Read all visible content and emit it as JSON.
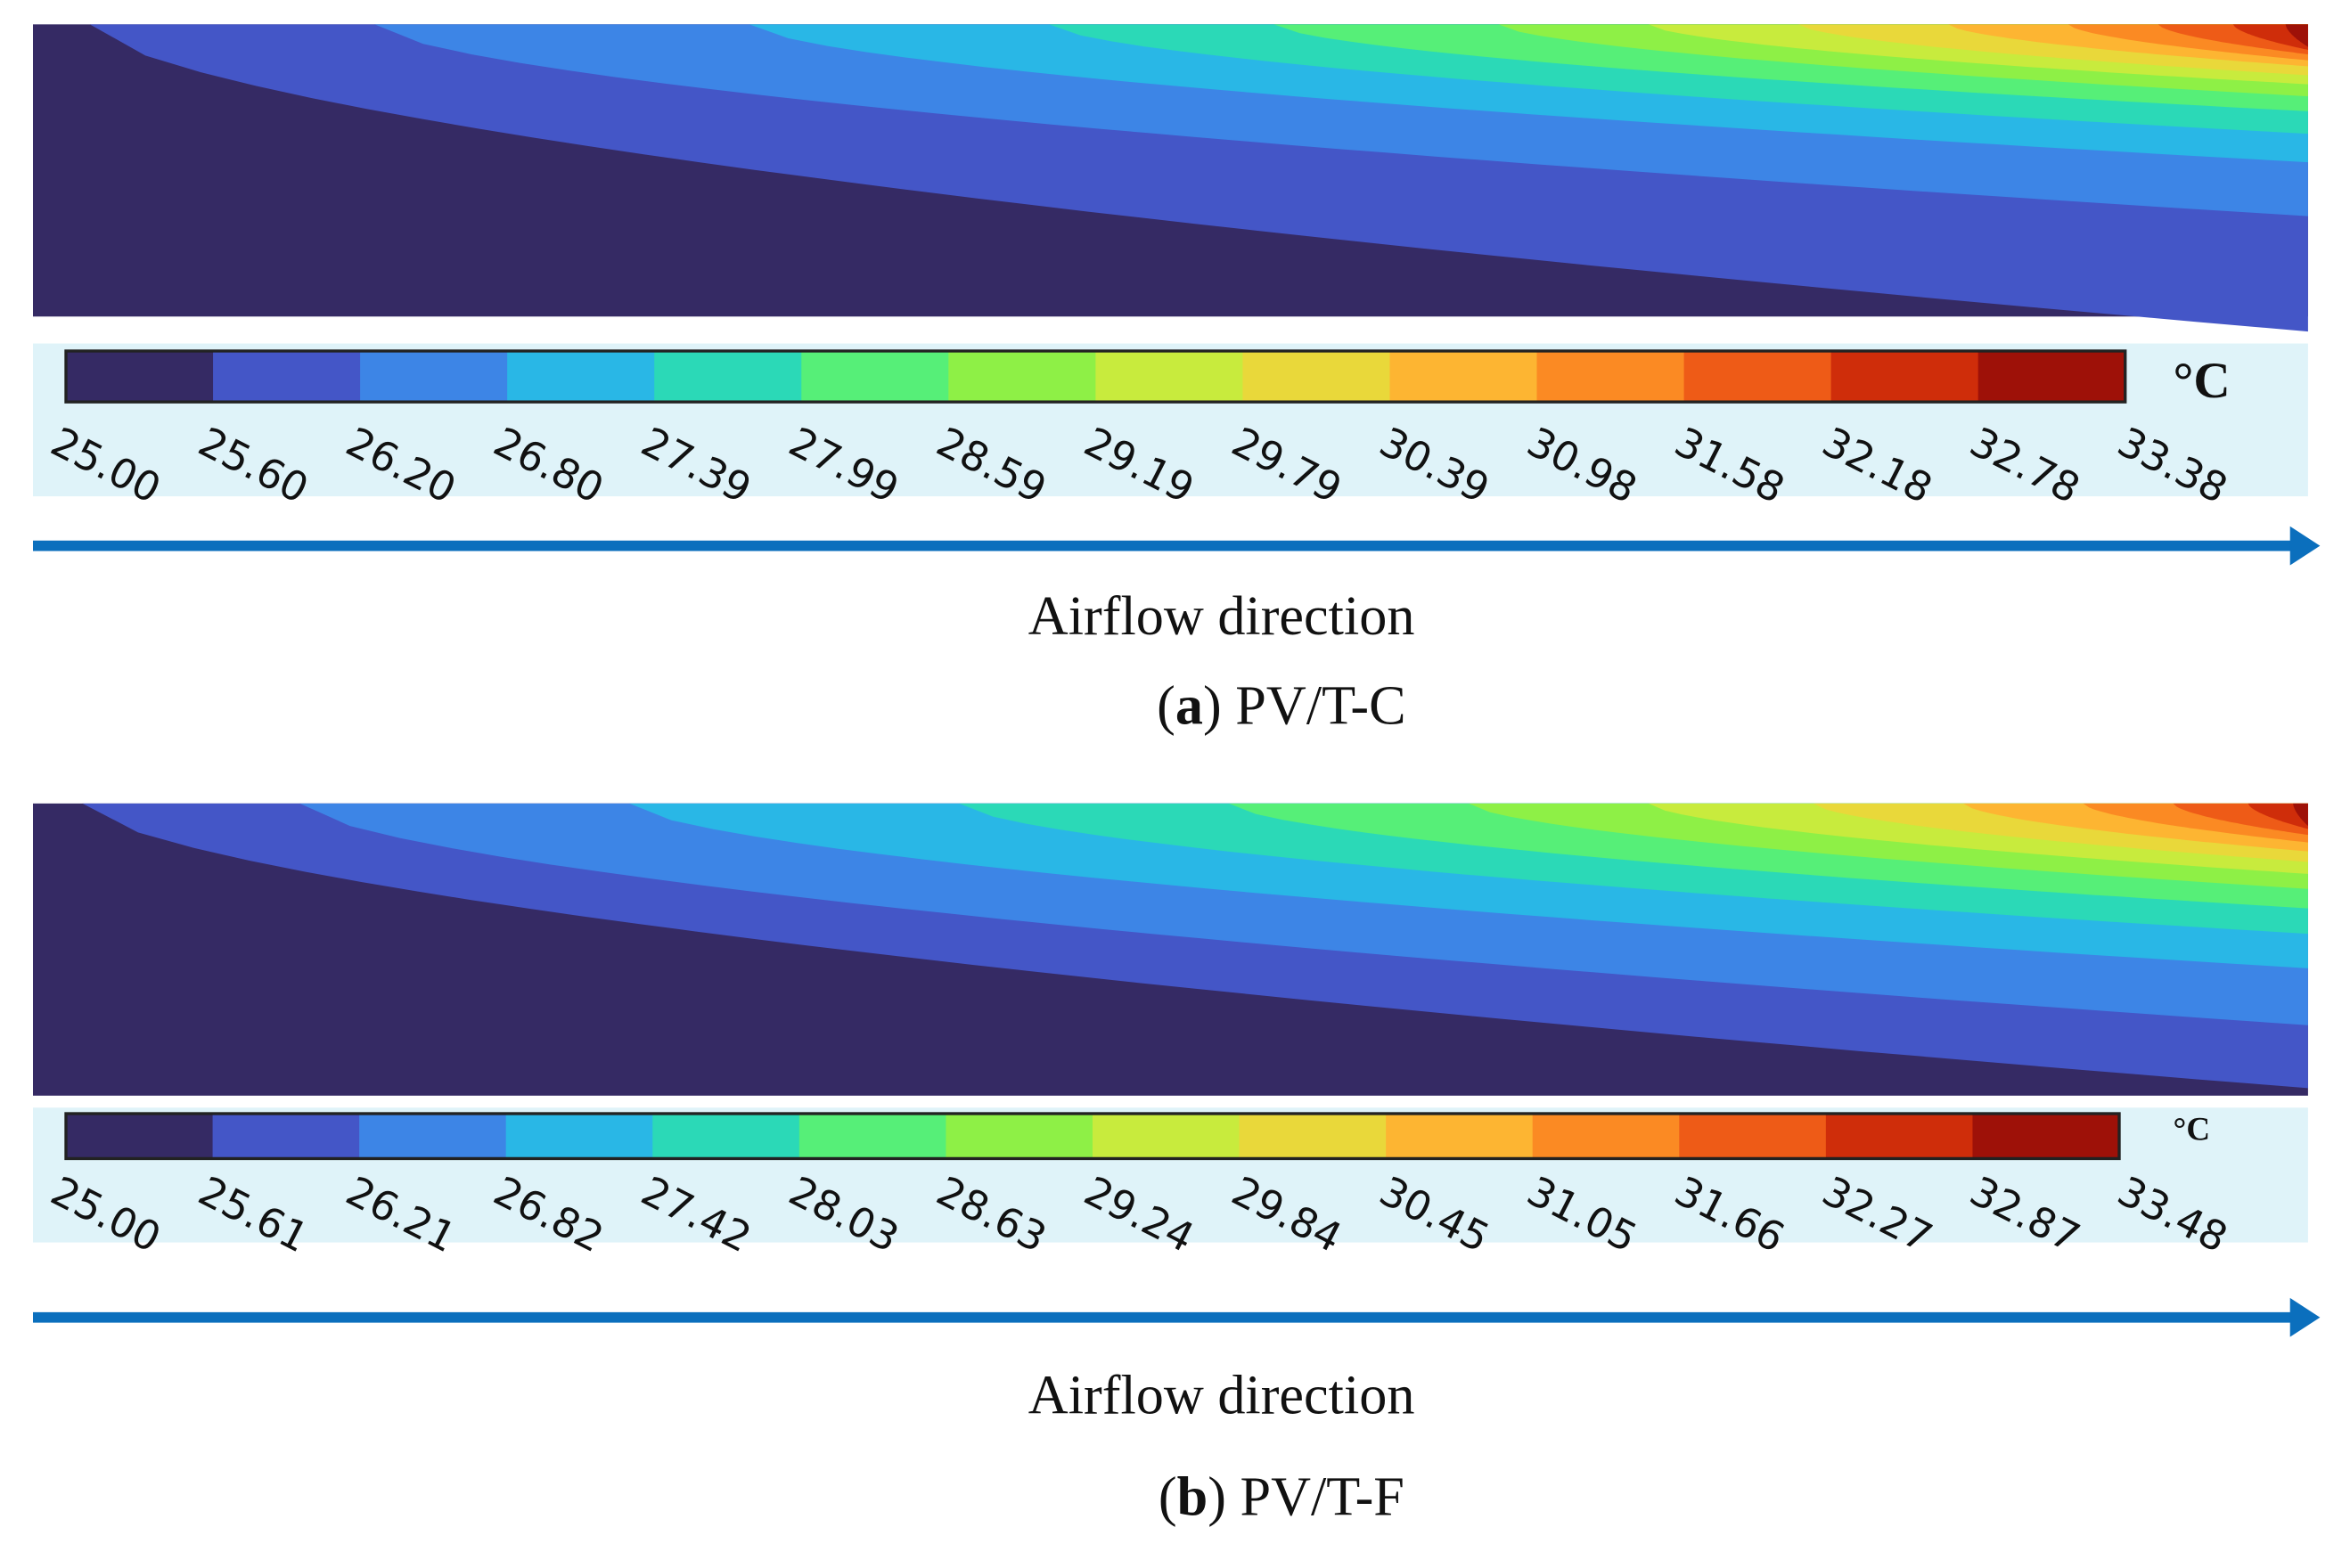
{
  "colorbar_colors": [
    "#352a64",
    "#4456c7",
    "#3d85e6",
    "#29b7e6",
    "#2bd9b7",
    "#56ef78",
    "#8ef046",
    "#c8eb3d",
    "#e9d83a",
    "#fdb532",
    "#fb8a23",
    "#ee5b17",
    "#cf2d0a",
    "#9e1108"
  ],
  "panels": [
    {
      "colorbar_labels": [
        "25.00",
        "25.60",
        "26.20",
        "26.80",
        "27.39",
        "27.99",
        "28.59",
        "29.19",
        "29.79",
        "30.39",
        "30.98",
        "31.58",
        "32.18",
        "32.78",
        "33.38"
      ],
      "unit": "°C",
      "arrow_label": "Airflow direction",
      "caption": [
        "(",
        "a",
        ") PV/T-C"
      ]
    },
    {
      "colorbar_labels": [
        "25.00",
        "25.61",
        "26.21",
        "26.82",
        "27.42",
        "28.03",
        "28.63",
        "29.24",
        "29.84",
        "30.45",
        "31.05",
        "31.66",
        "32.27",
        "32.87",
        "33.48"
      ],
      "unit": "°C",
      "arrow_label": "Airflow direction",
      "caption": [
        "(",
        "b",
        ") PV/T-F"
      ]
    }
  ]
}
